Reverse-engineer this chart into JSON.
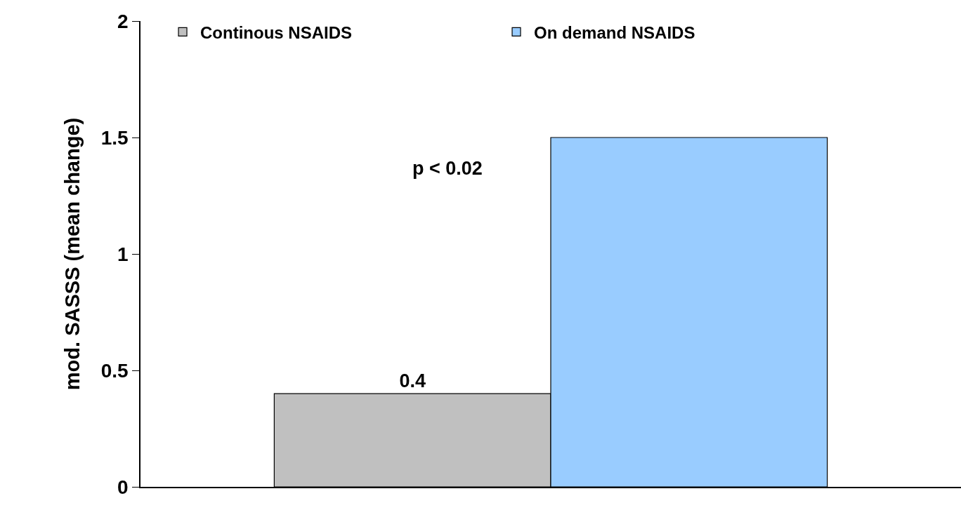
{
  "chart_data": {
    "type": "bar",
    "categories": [
      null
    ],
    "series": [
      {
        "name": "Continous NSAIDS",
        "color": "#c0c0c0",
        "values": [
          0.4
        ],
        "value_labels": [
          "0.4"
        ]
      },
      {
        "name": "On demand NSAIDS",
        "color": "#99ccff",
        "values": [
          1.5
        ]
      }
    ],
    "ylabel": "mod. SASSS (mean change)",
    "ylim": [
      0,
      2
    ],
    "yticks": [
      0,
      0.5,
      1,
      1.5,
      2
    ],
    "annotations": [
      "p < 0.02"
    ],
    "legend": "top left"
  }
}
